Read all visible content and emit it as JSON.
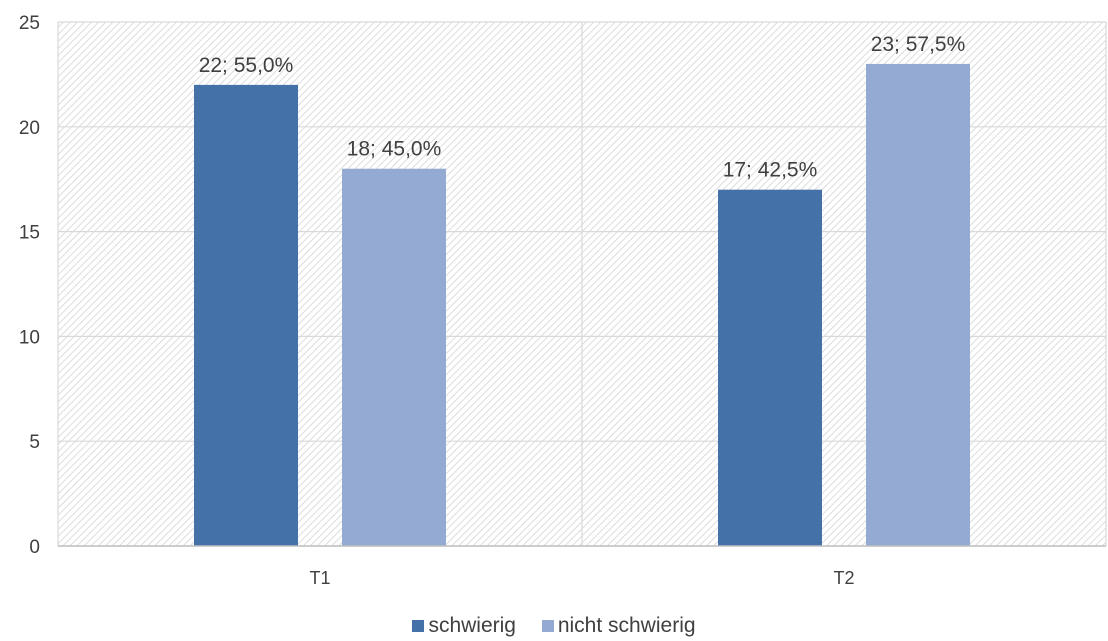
{
  "chart_data": {
    "type": "bar",
    "categories": [
      "T1",
      "T2"
    ],
    "series": [
      {
        "name": "schwierig",
        "values": [
          22,
          17
        ],
        "labels": [
          "22; 55,0%",
          "17; 42,5%"
        ],
        "color": "#4472a8"
      },
      {
        "name": "nicht schwierig",
        "values": [
          18,
          23
        ],
        "labels": [
          "18; 45,0%",
          "23; 57,5%"
        ],
        "color": "#95aad2"
      }
    ],
    "title": "",
    "xlabel": "",
    "ylabel": "",
    "ylim": [
      0,
      25
    ],
    "yticks": [
      0,
      5,
      10,
      15,
      20,
      25
    ],
    "grid": true,
    "plot_background": "hatched",
    "legend_position": "bottom"
  }
}
